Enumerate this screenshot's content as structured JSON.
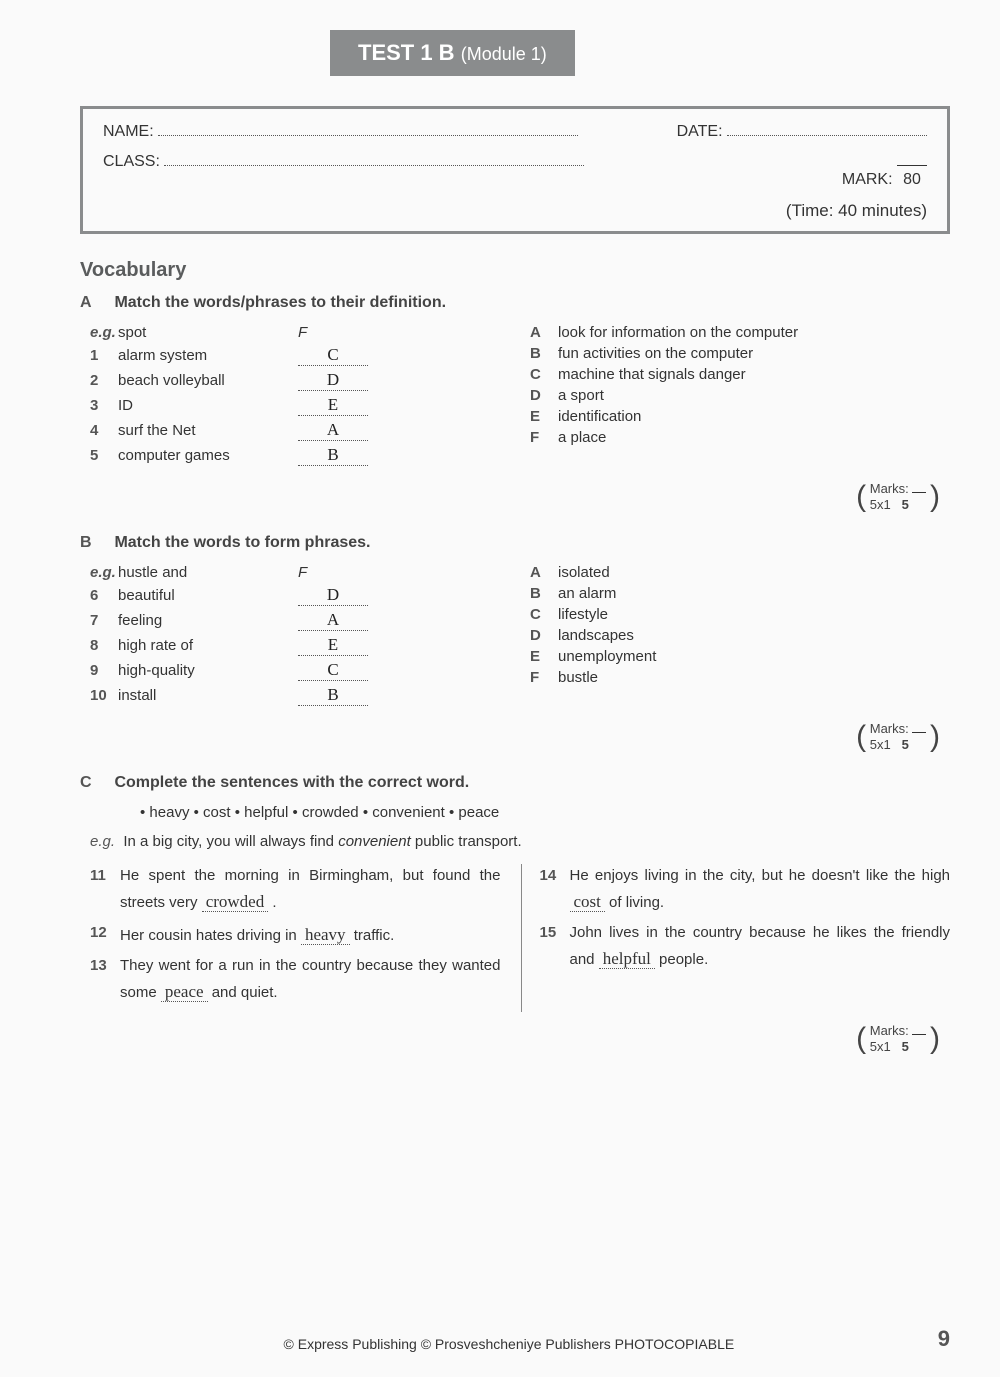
{
  "banner": {
    "main": "TEST 1 B",
    "sub": "(Module 1)"
  },
  "header": {
    "name_label": "NAME:",
    "date_label": "DATE:",
    "class_label": "CLASS:",
    "mark_label": "MARK:",
    "mark_denom": "80",
    "time": "(Time: 40 minutes)"
  },
  "vocab_title": "Vocabulary",
  "partA": {
    "letter": "A",
    "instr": "Match the words/phrases to their definition.",
    "eg_label": "e.g.",
    "eg_word": "spot",
    "eg_ans": "F",
    "items": [
      {
        "n": "1",
        "w": "alarm system",
        "a": "C"
      },
      {
        "n": "2",
        "w": "beach volleyball",
        "a": "D"
      },
      {
        "n": "3",
        "w": "ID",
        "a": "E"
      },
      {
        "n": "4",
        "w": "surf the Net",
        "a": "A"
      },
      {
        "n": "5",
        "w": "computer games",
        "a": "B"
      }
    ],
    "defs": [
      {
        "l": "A",
        "d": "look for information on the computer"
      },
      {
        "l": "B",
        "d": "fun activities on the computer"
      },
      {
        "l": "C",
        "d": "machine that signals danger"
      },
      {
        "l": "D",
        "d": "a sport"
      },
      {
        "l": "E",
        "d": "identification"
      },
      {
        "l": "F",
        "d": "a place"
      }
    ],
    "marks": {
      "label": "Marks:",
      "calc": "5x1",
      "total": "5"
    }
  },
  "partB": {
    "letter": "B",
    "instr": "Match the words to form phrases.",
    "eg_label": "e.g.",
    "eg_word": "hustle and",
    "eg_ans": "F",
    "items": [
      {
        "n": "6",
        "w": "beautiful",
        "a": "D"
      },
      {
        "n": "7",
        "w": "feeling",
        "a": "A"
      },
      {
        "n": "8",
        "w": "high rate of",
        "a": "E"
      },
      {
        "n": "9",
        "w": "high-quality",
        "a": "C"
      },
      {
        "n": "10",
        "w": "install",
        "a": "B"
      }
    ],
    "defs": [
      {
        "l": "A",
        "d": "isolated"
      },
      {
        "l": "B",
        "d": "an alarm"
      },
      {
        "l": "C",
        "d": "lifestyle"
      },
      {
        "l": "D",
        "d": "landscapes"
      },
      {
        "l": "E",
        "d": "unemployment"
      },
      {
        "l": "F",
        "d": "bustle"
      }
    ],
    "marks": {
      "label": "Marks:",
      "calc": "5x1",
      "total": "5"
    }
  },
  "partC": {
    "letter": "C",
    "instr": "Complete the sentences with the correct word.",
    "bank": [
      "heavy",
      "cost",
      "helpful",
      "crowded",
      "convenient",
      "peace"
    ],
    "eg_label": "e.g.",
    "eg_pre": "In a big city, you will always find ",
    "eg_em": "convenient",
    "eg_post": " public transport.",
    "left": [
      {
        "n": "11",
        "pre": "He spent the morning in Birmingham, but found the streets very ",
        "ans": "crowded",
        "post": " ."
      },
      {
        "n": "12",
        "pre": "Her cousin hates driving in ",
        "ans": "heavy",
        "post": " traffic."
      },
      {
        "n": "13",
        "pre": "They went for a run in the country because they wanted some ",
        "ans": "peace",
        "post": " and quiet."
      }
    ],
    "right": [
      {
        "n": "14",
        "pre": "He enjoys living in the city, but he doesn't like the high ",
        "ans": "cost",
        "post": " of living."
      },
      {
        "n": "15",
        "pre": "John lives in the country because he likes the friendly and ",
        "ans": "helpful",
        "post": " people."
      }
    ],
    "marks": {
      "label": "Marks:",
      "calc": "5x1",
      "total": "5"
    }
  },
  "footer": {
    "copy": "© Express Publishing © Prosveshcheniye Publishers  PHOTOCOPIABLE",
    "page": "9"
  }
}
